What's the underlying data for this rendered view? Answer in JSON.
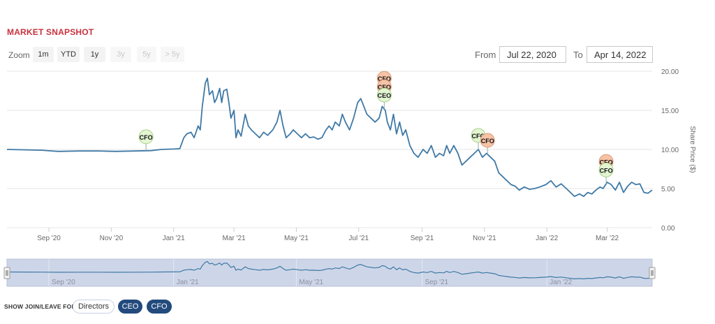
{
  "header": {
    "title": "MARKET SNAPSHOT"
  },
  "zoom": {
    "label": "Zoom",
    "buttons": [
      {
        "label": "1m",
        "enabled": true
      },
      {
        "label": "YTD",
        "enabled": true
      },
      {
        "label": "1y",
        "enabled": true
      },
      {
        "label": "3y",
        "enabled": false
      },
      {
        "label": "5y",
        "enabled": false
      },
      {
        "label": "> 5y",
        "enabled": false
      }
    ]
  },
  "range": {
    "from_label": "From",
    "from_value": "Jul 22, 2020",
    "to_label": "To",
    "to_value": "Apr 14, 2022"
  },
  "footer": {
    "label": "SHOW JOIN/LEAVE FOR:",
    "pills": [
      {
        "label": "Directors",
        "active": false
      },
      {
        "label": "CEO",
        "active": true
      },
      {
        "label": "CFO",
        "active": true
      }
    ]
  },
  "colors": {
    "line": "#3f79a6",
    "grid": "#e6e6e6",
    "join_marker": "#e3f5d2",
    "leave_marker": "#f6c3a6",
    "title": "#c8313e",
    "navigator_fill": "#cdd6e8",
    "pill_active": "#234a7c"
  },
  "chart_data": {
    "type": "line",
    "title": "",
    "xlabel": "",
    "ylabel": "Share Price ($)",
    "ylim": [
      0,
      20
    ],
    "y_ticks": [
      "0.00",
      "5.00",
      "10.00",
      "15.00",
      "20.00"
    ],
    "x_ticks": [
      "Sep '20",
      "Nov '20",
      "Jan '21",
      "Mar '21",
      "May '21",
      "Jul '21",
      "Sep '21",
      "Nov '21",
      "Jan '22",
      "Mar '22"
    ],
    "x_tick_dates": [
      "2020-09-01",
      "2020-11-01",
      "2021-01-01",
      "2021-03-01",
      "2021-05-01",
      "2021-07-01",
      "2021-09-01",
      "2021-11-01",
      "2022-01-01",
      "2022-03-01"
    ],
    "navigator_ticks": [
      "Sep '20",
      "Jan '21",
      "May '21",
      "Sep '21",
      "Jan '22"
    ],
    "navigator_tick_dates": [
      "2020-09-01",
      "2021-01-01",
      "2021-05-01",
      "2021-09-01",
      "2022-01-01"
    ],
    "grid": true,
    "series": [
      {
        "name": "",
        "points": [
          [
            "2020-07-22",
            10.0
          ],
          [
            "2020-08-10",
            9.95
          ],
          [
            "2020-08-25",
            9.9
          ],
          [
            "2020-09-10",
            9.75
          ],
          [
            "2020-10-01",
            9.8
          ],
          [
            "2020-10-20",
            9.8
          ],
          [
            "2020-11-05",
            9.75
          ],
          [
            "2020-11-25",
            9.8
          ],
          [
            "2020-12-10",
            9.85
          ],
          [
            "2020-12-20",
            10.0
          ],
          [
            "2021-01-01",
            10.05
          ],
          [
            "2021-01-07",
            10.1
          ],
          [
            "2021-01-11",
            11.5
          ],
          [
            "2021-01-14",
            12.0
          ],
          [
            "2021-01-18",
            12.2
          ],
          [
            "2021-01-21",
            11.5
          ],
          [
            "2021-01-25",
            13.0
          ],
          [
            "2021-01-27",
            12.5
          ],
          [
            "2021-01-29",
            15.5
          ],
          [
            "2021-02-01",
            18.5
          ],
          [
            "2021-02-03",
            19.1
          ],
          [
            "2021-02-05",
            17.0
          ],
          [
            "2021-02-08",
            17.5
          ],
          [
            "2021-02-10",
            16.0
          ],
          [
            "2021-02-12",
            16.5
          ],
          [
            "2021-02-15",
            17.8
          ],
          [
            "2021-02-17",
            16.0
          ],
          [
            "2021-02-19",
            17.5
          ],
          [
            "2021-02-22",
            17.7
          ],
          [
            "2021-02-24",
            16.0
          ],
          [
            "2021-02-26",
            14.0
          ],
          [
            "2021-03-01",
            15.0
          ],
          [
            "2021-03-03",
            11.5
          ],
          [
            "2021-03-05",
            12.5
          ],
          [
            "2021-03-08",
            11.7
          ],
          [
            "2021-03-12",
            14.5
          ],
          [
            "2021-03-15",
            13.0
          ],
          [
            "2021-03-18",
            12.5
          ],
          [
            "2021-03-22",
            12.0
          ],
          [
            "2021-03-26",
            11.5
          ],
          [
            "2021-03-30",
            12.2
          ],
          [
            "2021-04-03",
            11.8
          ],
          [
            "2021-04-08",
            12.5
          ],
          [
            "2021-04-12",
            13.5
          ],
          [
            "2021-04-15",
            15.0
          ],
          [
            "2021-04-18",
            13.0
          ],
          [
            "2021-04-21",
            11.5
          ],
          [
            "2021-04-25",
            12.0
          ],
          [
            "2021-04-28",
            12.5
          ],
          [
            "2021-05-02",
            12.0
          ],
          [
            "2021-05-06",
            11.5
          ],
          [
            "2021-05-10",
            12.0
          ],
          [
            "2021-05-14",
            11.5
          ],
          [
            "2021-05-18",
            11.6
          ],
          [
            "2021-05-22",
            11.3
          ],
          [
            "2021-05-26",
            11.5
          ],
          [
            "2021-05-30",
            12.5
          ],
          [
            "2021-06-02",
            13.0
          ],
          [
            "2021-06-05",
            12.5
          ],
          [
            "2021-06-08",
            13.5
          ],
          [
            "2021-06-12",
            13.0
          ],
          [
            "2021-06-15",
            14.5
          ],
          [
            "2021-06-18",
            13.5
          ],
          [
            "2021-06-22",
            12.5
          ],
          [
            "2021-06-26",
            14.0
          ],
          [
            "2021-06-30",
            16.0
          ],
          [
            "2021-07-03",
            16.5
          ],
          [
            "2021-07-06",
            15.5
          ],
          [
            "2021-07-09",
            14.5
          ],
          [
            "2021-07-13",
            14.0
          ],
          [
            "2021-07-17",
            13.5
          ],
          [
            "2021-07-21",
            14.0
          ],
          [
            "2021-07-24",
            15.5
          ],
          [
            "2021-07-27",
            15.0
          ],
          [
            "2021-07-29",
            13.5
          ],
          [
            "2021-08-01",
            12.5
          ],
          [
            "2021-08-04",
            14.5
          ],
          [
            "2021-08-07",
            12.0
          ],
          [
            "2021-08-10",
            13.5
          ],
          [
            "2021-08-13",
            11.8
          ],
          [
            "2021-08-16",
            12.5
          ],
          [
            "2021-08-20",
            10.5
          ],
          [
            "2021-08-24",
            9.5
          ],
          [
            "2021-08-28",
            9.0
          ],
          [
            "2021-09-02",
            10.0
          ],
          [
            "2021-09-06",
            9.5
          ],
          [
            "2021-09-10",
            10.5
          ],
          [
            "2021-09-14",
            9.0
          ],
          [
            "2021-09-18",
            9.5
          ],
          [
            "2021-09-22",
            9.2
          ],
          [
            "2021-09-25",
            10.5
          ],
          [
            "2021-09-28",
            9.5
          ],
          [
            "2021-10-02",
            10.5
          ],
          [
            "2021-10-06",
            9.5
          ],
          [
            "2021-10-10",
            8.0
          ],
          [
            "2021-10-14",
            8.5
          ],
          [
            "2021-10-18",
            9.0
          ],
          [
            "2021-10-22",
            9.5
          ],
          [
            "2021-10-26",
            10.0
          ],
          [
            "2021-10-30",
            9.0
          ],
          [
            "2021-11-03",
            9.5
          ],
          [
            "2021-11-07",
            9.0
          ],
          [
            "2021-11-11",
            8.5
          ],
          [
            "2021-11-15",
            7.0
          ],
          [
            "2021-11-19",
            6.5
          ],
          [
            "2021-11-23",
            6.0
          ],
          [
            "2021-11-27",
            5.5
          ],
          [
            "2021-12-01",
            5.3
          ],
          [
            "2021-12-05",
            4.8
          ],
          [
            "2021-12-10",
            5.2
          ],
          [
            "2021-12-15",
            4.9
          ],
          [
            "2021-12-20",
            5.0
          ],
          [
            "2021-12-25",
            5.2
          ],
          [
            "2021-12-31",
            5.5
          ],
          [
            "2022-01-05",
            6.0
          ],
          [
            "2022-01-10",
            5.2
          ],
          [
            "2022-01-15",
            5.6
          ],
          [
            "2022-01-20",
            5.0
          ],
          [
            "2022-01-24",
            4.5
          ],
          [
            "2022-01-28",
            4.0
          ],
          [
            "2022-02-02",
            4.3
          ],
          [
            "2022-02-06",
            4.0
          ],
          [
            "2022-02-10",
            4.5
          ],
          [
            "2022-02-14",
            4.3
          ],
          [
            "2022-02-18",
            4.8
          ],
          [
            "2022-02-22",
            5.2
          ],
          [
            "2022-02-25",
            5.0
          ],
          [
            "2022-03-01",
            5.8
          ],
          [
            "2022-03-05",
            5.5
          ],
          [
            "2022-03-09",
            4.8
          ],
          [
            "2022-03-13",
            5.8
          ],
          [
            "2022-03-17",
            4.5
          ],
          [
            "2022-03-21",
            5.3
          ],
          [
            "2022-03-25",
            5.8
          ],
          [
            "2022-03-29",
            5.5
          ],
          [
            "2022-04-02",
            5.6
          ],
          [
            "2022-04-06",
            4.5
          ],
          [
            "2022-04-10",
            4.4
          ],
          [
            "2022-04-14",
            4.8
          ]
        ]
      }
    ],
    "annotations": [
      {
        "date": "2020-12-05",
        "stack": [
          {
            "label": "CFO",
            "kind": "join"
          }
        ]
      },
      {
        "date": "2021-07-26",
        "stack": [
          {
            "label": "CFO",
            "kind": "leave"
          },
          {
            "label": "CFO",
            "kind": "leave"
          },
          {
            "label": "CEO",
            "kind": "join"
          }
        ]
      },
      {
        "date": "2021-10-26",
        "stack": [
          {
            "label": "CFO",
            "kind": "join"
          }
        ]
      },
      {
        "date": "2021-11-04",
        "stack": [
          {
            "label": "CFO",
            "kind": "leave"
          }
        ]
      },
      {
        "date": "2022-02-28",
        "stack": [
          {
            "label": "CFO",
            "kind": "leave"
          },
          {
            "label": "CFO",
            "kind": "join"
          }
        ]
      }
    ]
  }
}
